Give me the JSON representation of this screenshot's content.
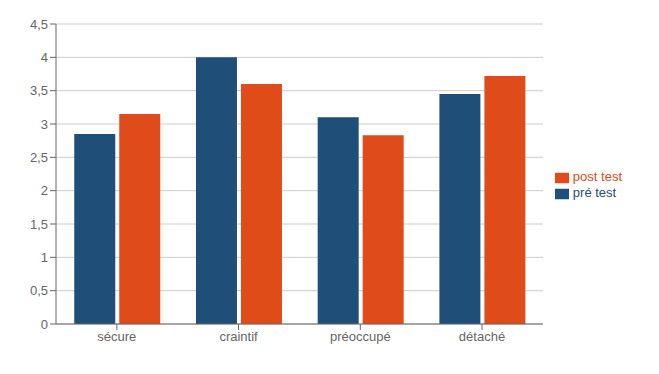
{
  "chart_data": {
    "type": "bar",
    "categories": [
      "sécure",
      "craintif",
      "préoccupé",
      "détaché"
    ],
    "series": [
      {
        "name": "pré test",
        "color": "#1F4E79",
        "values": [
          2.85,
          4.0,
          3.1,
          3.45
        ]
      },
      {
        "name": "post test",
        "color": "#E04B1A",
        "values": [
          3.15,
          3.6,
          2.83,
          3.72
        ]
      }
    ],
    "ylim": [
      0,
      4.5
    ],
    "yticks": [
      0,
      {
        "value": 0.5,
        "label": "0,5"
      },
      1,
      {
        "value": 1.5,
        "label": "1,5"
      },
      2,
      {
        "value": 2.5,
        "label": "2,5"
      },
      3,
      {
        "value": 3.5,
        "label": "3,5"
      },
      4,
      {
        "value": 4.5,
        "label": "4,5"
      }
    ],
    "grid": true,
    "legend": "right"
  }
}
